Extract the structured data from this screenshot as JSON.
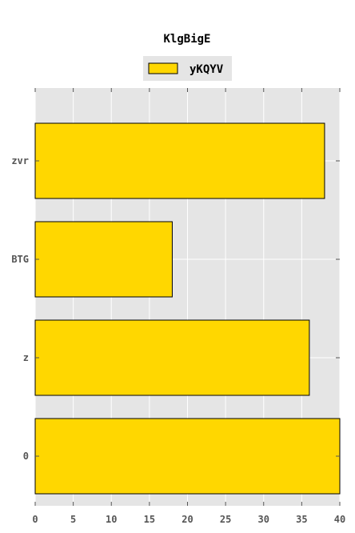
{
  "chart_data": {
    "type": "bar",
    "orientation": "horizontal",
    "title": "KlgBigE",
    "xlabel": "",
    "ylabel": "",
    "categories": [
      "0",
      "z",
      "BTG",
      "zvr"
    ],
    "series": [
      {
        "name": "yKQYV",
        "values": [
          40,
          36,
          18,
          38
        ]
      }
    ],
    "xlim": [
      0,
      40
    ],
    "xticks": [
      0,
      5,
      10,
      15,
      20,
      25,
      30,
      35,
      40
    ],
    "grid": true,
    "legend_position": "top-center",
    "colors": {
      "bar_fill": "#FFD700",
      "bar_edge": "#000000",
      "plot_background": "#E5E5E5",
      "grid": "#FFFFFF",
      "tick_label": "#555555"
    }
  }
}
